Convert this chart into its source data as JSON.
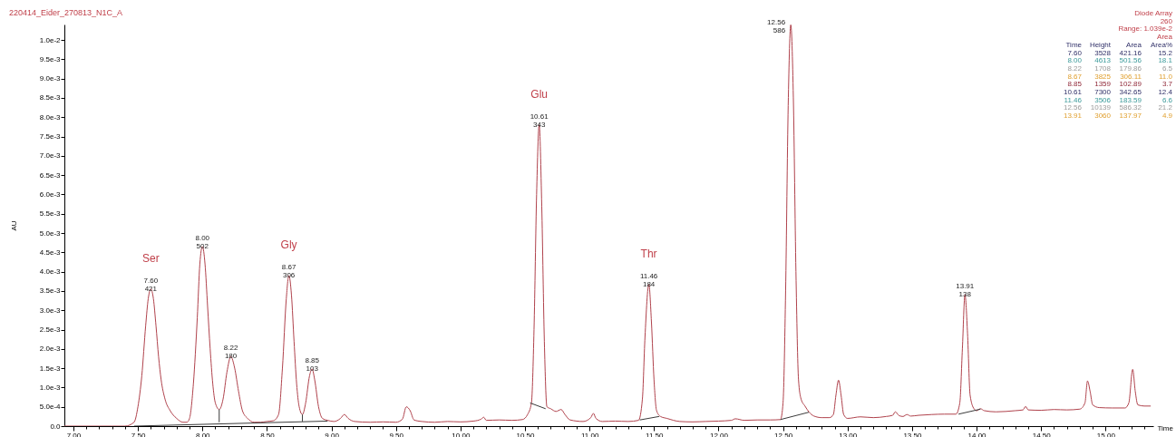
{
  "chart_data": {
    "type": "line",
    "title": "220414_Eider_270813_N1C_A",
    "xlabel": "Time",
    "ylabel": "AU",
    "xlim": [
      6.93,
      15.37
    ],
    "ylim": [
      0,
      0.0104
    ],
    "xticks": [
      {
        "value": 7,
        "label": "7.00"
      },
      {
        "value": 7.1,
        "label": null
      },
      {
        "value": 7.2,
        "label": null
      },
      {
        "value": 7.3,
        "label": null
      },
      {
        "value": 7.4,
        "label": null
      },
      {
        "value": 7.5,
        "label": "7.50"
      },
      {
        "value": 7.6,
        "label": null
      },
      {
        "value": 7.7,
        "label": null
      },
      {
        "value": 7.8,
        "label": null
      },
      {
        "value": 7.9,
        "label": null
      },
      {
        "value": 8,
        "label": "8.00"
      },
      {
        "value": 8.1,
        "label": null
      },
      {
        "value": 8.2,
        "label": null
      },
      {
        "value": 8.3,
        "label": null
      },
      {
        "value": 8.4,
        "label": null
      },
      {
        "value": 8.5,
        "label": "8.50"
      },
      {
        "value": 8.6,
        "label": null
      },
      {
        "value": 8.7,
        "label": null
      },
      {
        "value": 8.8,
        "label": null
      },
      {
        "value": 8.9,
        "label": null
      },
      {
        "value": 9,
        "label": "9.00"
      },
      {
        "value": 9.1,
        "label": null
      },
      {
        "value": 9.2,
        "label": null
      },
      {
        "value": 9.3,
        "label": null
      },
      {
        "value": 9.4,
        "label": null
      },
      {
        "value": 9.5,
        "label": "9.50"
      },
      {
        "value": 9.6,
        "label": null
      },
      {
        "value": 9.7,
        "label": null
      },
      {
        "value": 9.8,
        "label": null
      },
      {
        "value": 9.9,
        "label": null
      },
      {
        "value": 10,
        "label": "10.00"
      },
      {
        "value": 10.1,
        "label": null
      },
      {
        "value": 10.2,
        "label": null
      },
      {
        "value": 10.3,
        "label": null
      },
      {
        "value": 10.4,
        "label": null
      },
      {
        "value": 10.5,
        "label": "10.50"
      },
      {
        "value": 10.6,
        "label": null
      },
      {
        "value": 10.7,
        "label": null
      },
      {
        "value": 10.8,
        "label": null
      },
      {
        "value": 10.9,
        "label": null
      },
      {
        "value": 11,
        "label": "11.00"
      },
      {
        "value": 11.1,
        "label": null
      },
      {
        "value": 11.2,
        "label": null
      },
      {
        "value": 11.3,
        "label": null
      },
      {
        "value": 11.4,
        "label": null
      },
      {
        "value": 11.5,
        "label": "11.50"
      },
      {
        "value": 11.6,
        "label": null
      },
      {
        "value": 11.7,
        "label": null
      },
      {
        "value": 11.8,
        "label": null
      },
      {
        "value": 11.9,
        "label": null
      },
      {
        "value": 12,
        "label": "12.00"
      },
      {
        "value": 12.1,
        "label": null
      },
      {
        "value": 12.2,
        "label": null
      },
      {
        "value": 12.3,
        "label": null
      },
      {
        "value": 12.4,
        "label": null
      },
      {
        "value": 12.5,
        "label": "12.50"
      },
      {
        "value": 12.6,
        "label": null
      },
      {
        "value": 12.7,
        "label": null
      },
      {
        "value": 12.8,
        "label": null
      },
      {
        "value": 12.9,
        "label": null
      },
      {
        "value": 13,
        "label": "13.00"
      },
      {
        "value": 13.1,
        "label": null
      },
      {
        "value": 13.2,
        "label": null
      },
      {
        "value": 13.3,
        "label": null
      },
      {
        "value": 13.4,
        "label": null
      },
      {
        "value": 13.5,
        "label": "13.50"
      },
      {
        "value": 13.6,
        "label": null
      },
      {
        "value": 13.7,
        "label": null
      },
      {
        "value": 13.8,
        "label": null
      },
      {
        "value": 13.9,
        "label": null
      },
      {
        "value": 14,
        "label": "14.00"
      },
      {
        "value": 14.1,
        "label": null
      },
      {
        "value": 14.2,
        "label": null
      },
      {
        "value": 14.3,
        "label": null
      },
      {
        "value": 14.4,
        "label": null
      },
      {
        "value": 14.5,
        "label": "14.50"
      },
      {
        "value": 14.6,
        "label": null
      },
      {
        "value": 14.7,
        "label": null
      },
      {
        "value": 14.8,
        "label": null
      },
      {
        "value": 14.9,
        "label": null
      },
      {
        "value": 15,
        "label": "15.00"
      },
      {
        "value": 15.1,
        "label": null
      },
      {
        "value": 15.2,
        "label": null
      },
      {
        "value": 15.3,
        "label": null
      }
    ],
    "yticks": [
      {
        "value": 0,
        "label": "0.0"
      },
      {
        "value": 0.0005,
        "label": "5.0e-4"
      },
      {
        "value": 0.001,
        "label": "1.0e-3"
      },
      {
        "value": 0.0015,
        "label": "1.5e-3"
      },
      {
        "value": 0.002,
        "label": "2.0e-3"
      },
      {
        "value": 0.0025,
        "label": "2.5e-3"
      },
      {
        "value": 0.003,
        "label": "3.0e-3"
      },
      {
        "value": 0.0035,
        "label": "3.5e-3"
      },
      {
        "value": 0.004,
        "label": "4.0e-3"
      },
      {
        "value": 0.0045,
        "label": "4.5e-3"
      },
      {
        "value": 0.005,
        "label": "5.0e-3"
      },
      {
        "value": 0.0055,
        "label": "5.5e-3"
      },
      {
        "value": 0.006,
        "label": "6.0e-3"
      },
      {
        "value": 0.0065,
        "label": "6.5e-3"
      },
      {
        "value": 0.007,
        "label": "7.0e-3"
      },
      {
        "value": 0.0075,
        "label": "7.5e-3"
      },
      {
        "value": 0.008,
        "label": "8.0e-3"
      },
      {
        "value": 0.0085,
        "label": "8.5e-3"
      },
      {
        "value": 0.009,
        "label": "9.0e-3"
      },
      {
        "value": 0.0095,
        "label": "9.5e-3"
      },
      {
        "value": 0.01,
        "label": "1.0e-2"
      }
    ],
    "series": [
      {
        "color": "#b0424c",
        "x": [
          6.93,
          7.0,
          7.1,
          7.2,
          7.3,
          7.4,
          7.47,
          7.5,
          7.53,
          7.56,
          7.58,
          7.6,
          7.62,
          7.64,
          7.66,
          7.68,
          7.71,
          7.75,
          7.8,
          7.85,
          7.88,
          7.9,
          7.93,
          7.96,
          7.98,
          8.0,
          8.02,
          8.04,
          8.06,
          8.08,
          8.1,
          8.13,
          8.16,
          8.19,
          8.22,
          8.25,
          8.28,
          8.31,
          8.35,
          8.4,
          8.45,
          8.5,
          8.55,
          8.59,
          8.62,
          8.65,
          8.67,
          8.69,
          8.71,
          8.73,
          8.75,
          8.775,
          8.8,
          8.83,
          8.85,
          8.87,
          8.9,
          8.93,
          8.97,
          9.02,
          9.07,
          9.1,
          9.13,
          9.18,
          9.3,
          9.4,
          9.5,
          9.55,
          9.58,
          9.61,
          9.64,
          9.7,
          9.8,
          9.9,
          10.0,
          10.1,
          10.16,
          10.18,
          10.2,
          10.3,
          10.4,
          10.48,
          10.52,
          10.55,
          10.57,
          10.59,
          10.61,
          10.63,
          10.65,
          10.67,
          10.7,
          10.74,
          10.78,
          10.81,
          10.85,
          10.95,
          11.01,
          11.03,
          11.05,
          11.1,
          11.2,
          11.3,
          11.38,
          11.41,
          11.43,
          11.46,
          11.48,
          11.5,
          11.52,
          11.55,
          11.6,
          11.7,
          11.8,
          11.9,
          12.0,
          12.1,
          12.13,
          12.2,
          12.3,
          12.4,
          12.48,
          12.5,
          12.52,
          12.54,
          12.56,
          12.58,
          12.6,
          12.62,
          12.64,
          12.67,
          12.7,
          12.74,
          12.8,
          12.86,
          12.89,
          12.91,
          12.93,
          12.95,
          12.97,
          13.0,
          13.1,
          13.2,
          13.3,
          13.35,
          13.37,
          13.4,
          13.43,
          13.46,
          13.49,
          13.55,
          13.65,
          13.75,
          13.84,
          13.87,
          13.89,
          13.91,
          13.93,
          13.95,
          13.98,
          14.0,
          14.03,
          14.06,
          14.15,
          14.3,
          14.36,
          14.38,
          14.4,
          14.5,
          14.6,
          14.7,
          14.8,
          14.84,
          14.86,
          14.88,
          14.9,
          14.95,
          15.05,
          15.15,
          15.18,
          15.21,
          15.23,
          15.25,
          15.3,
          15.35
        ],
        "values": [
          0,
          0,
          0,
          0,
          0,
          0,
          0.0001,
          0.0005,
          0.0013,
          0.0026,
          0.0033,
          0.00355,
          0.0033,
          0.0026,
          0.0018,
          0.0012,
          0.0007,
          0.0004,
          0.0002,
          0.0001,
          0.0001,
          0.0002,
          0.0011,
          0.0028,
          0.0042,
          0.00465,
          0.0042,
          0.0031,
          0.002,
          0.0011,
          0.0006,
          0.00043,
          0.0007,
          0.0014,
          0.0018,
          0.0015,
          0.0009,
          0.0004,
          0.0002,
          0.0001,
          0.0001,
          0.00012,
          0.00014,
          0.0003,
          0.0015,
          0.0033,
          0.0039,
          0.0034,
          0.0022,
          0.0011,
          0.0005,
          0.0003,
          0.0006,
          0.0013,
          0.00148,
          0.0012,
          0.0005,
          0.0002,
          0.00015,
          0.00012,
          0.0002,
          0.0003,
          0.0002,
          0.00012,
          0.0001,
          0.00011,
          0.0001,
          0.00018,
          0.0005,
          0.0004,
          0.00016,
          0.00012,
          0.0001,
          0.00012,
          0.00011,
          0.00013,
          0.00018,
          0.00023,
          0.00015,
          0.00016,
          0.00015,
          0.00017,
          0.0003,
          0.0006,
          0.0025,
          0.006,
          0.0078,
          0.0057,
          0.0022,
          0.0005,
          0.00045,
          0.00038,
          0.00043,
          0.0003,
          0.00016,
          0.00012,
          0.00022,
          0.00033,
          0.0002,
          0.00012,
          0.00013,
          0.00012,
          0.00015,
          0.0007,
          0.0023,
          0.00367,
          0.0027,
          0.0012,
          0.0004,
          0.00025,
          0.0002,
          0.00012,
          0.00011,
          0.00012,
          0.00013,
          0.00015,
          0.00019,
          0.00015,
          0.00016,
          0.00016,
          0.00017,
          0.0006,
          0.0035,
          0.0083,
          0.01039,
          0.0085,
          0.004,
          0.0012,
          0.0007,
          0.00052,
          0.00037,
          0.00026,
          0.00022,
          0.00022,
          0.0003,
          0.0008,
          0.00119,
          0.0008,
          0.0003,
          0.0002,
          0.00024,
          0.00022,
          0.00025,
          0.00028,
          0.00037,
          0.00027,
          0.00025,
          0.0003,
          0.00026,
          0.00028,
          0.0003,
          0.00031,
          0.00031,
          0.0006,
          0.002,
          0.0034,
          0.0024,
          0.0008,
          0.00045,
          0.0004,
          0.00045,
          0.0004,
          0.00037,
          0.0004,
          0.00042,
          0.00051,
          0.00042,
          0.00041,
          0.00043,
          0.00042,
          0.00044,
          0.0006,
          0.00117,
          0.0009,
          0.00055,
          0.00048,
          0.00047,
          0.00047,
          0.0006,
          0.00147,
          0.0009,
          0.00055,
          0.00052,
          0.00052
        ]
      },
      {
        "color": "#3a3a3a",
        "x": [
          7.47,
          8.97
        ],
        "values": [
          0,
          0.00013
        ]
      },
      {
        "color": "#3a3a3a",
        "x": [
          8.13,
          8.13
        ],
        "values": [
          0.0001,
          0.00043
        ]
      },
      {
        "color": "#3a3a3a",
        "x": [
          8.775,
          8.775
        ],
        "values": [
          0.00012,
          0.0003
        ]
      },
      {
        "color": "#3a3a3a",
        "x": [
          10.54,
          10.66
        ],
        "values": [
          0.0006,
          0.00045
        ]
      },
      {
        "color": "#3a3a3a",
        "x": [
          11.39,
          11.54
        ],
        "values": [
          0.00016,
          0.00025
        ]
      },
      {
        "color": "#3a3a3a",
        "x": [
          12.48,
          12.7
        ],
        "values": [
          0.00017,
          0.00036
        ]
      },
      {
        "color": "#3a3a3a",
        "x": [
          13.86,
          14.03
        ],
        "values": [
          0.00031,
          0.00044
        ]
      }
    ],
    "annotations": [
      {
        "text": "7.60\n421",
        "x": 7.6,
        "y": 0.00355
      },
      {
        "text": "8.00\n502",
        "x": 8.0,
        "y": 0.00465
      },
      {
        "text": "8.22\n180",
        "x": 8.22,
        "y": 0.0018
      },
      {
        "text": "8.67\n306",
        "x": 8.67,
        "y": 0.0039
      },
      {
        "text": "8.85\n103",
        "x": 8.85,
        "y": 0.00148
      },
      {
        "text": "10.61\n343",
        "x": 10.61,
        "y": 0.0078
      },
      {
        "text": "11.46\n184",
        "x": 11.46,
        "y": 0.00367
      },
      {
        "text": "12.56\n586",
        "x": 12.56,
        "y": 0.01039
      },
      {
        "text": "13.91\n138",
        "x": 13.91,
        "y": 0.0034
      },
      {
        "text": "Ser",
        "x": 7.6,
        "y": 0.00355
      },
      {
        "text": "Gly",
        "x": 8.67,
        "y": 0.0039
      },
      {
        "text": "Glu",
        "x": 10.61,
        "y": 0.0078
      },
      {
        "text": "Thr",
        "x": 11.46,
        "y": 0.00367
      },
      "Diode Array",
      "260",
      "Range: 1.039e-2",
      "Area",
      "Time  Height  Area  Area%",
      "7.60  3528  421.16  15.2",
      "8.00  4613  501.56  18.1",
      "8.22  1708  179.86  6.5",
      "8.67  3825  306.11  11.0",
      "8.85  1359  102.89  3.7",
      "10.61  7300  342.65  12.4",
      "11.46  3506  183.59  6.6",
      "12.56  10139  586.32  21.2",
      "13.91  3060  137.97  4.9"
    ]
  }
}
